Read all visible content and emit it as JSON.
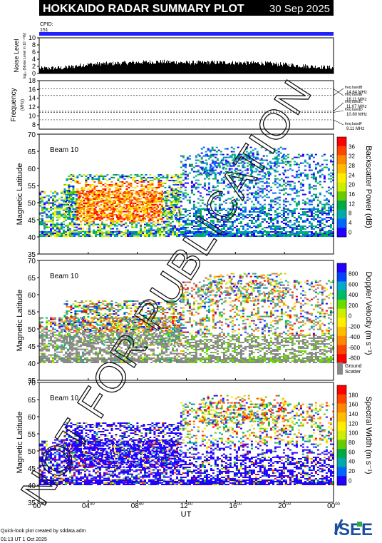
{
  "header": {
    "title": "HOKKAIDO RADAR SUMMARY PLOT",
    "date": "30 Sep 2025"
  },
  "cpid": {
    "label": "CPID:",
    "value": "151"
  },
  "noise_panel": {
    "ylabel": "Noise Level",
    "ylabel_sub": "log₁₀ (Noise Level in 10⁻¹⁰W)",
    "yticks": [
      "0",
      "2",
      "4",
      "6",
      "8",
      "10"
    ]
  },
  "freq_panel": {
    "ylabel": "Frequency",
    "ylabel_unit": "(MHz)",
    "yticks": [
      "8",
      "10",
      "12",
      "14",
      "16",
      "18"
    ],
    "bands": [
      {
        "name": "freq bandE",
        "value": "16.11 MHz"
      },
      {
        "name": "freq bandB",
        "value": "14.64 MHz"
      },
      {
        "name": "freq bandC",
        "value": "11.07 MHz"
      },
      {
        "name": "freq bandD",
        "value": "10.80 MHz"
      },
      {
        "name": "freq bandF",
        "value": "9.11 MHz"
      }
    ]
  },
  "panels": [
    {
      "beam_label": "Beam 10",
      "ylabel": "Magnetic Latitude",
      "colorbar_label": "Backscatter Power (dB)",
      "colorbar_ticks": [
        "36",
        "32",
        "28",
        "24",
        "20",
        "16",
        "12",
        "8",
        "4",
        "0"
      ],
      "colors": [
        "#ff0000",
        "#ff4400",
        "#ff8800",
        "#ffbb00",
        "#ffee00",
        "#ccee00",
        "#66cc00",
        "#00aa44",
        "#00aaaa",
        "#0066ff",
        "#2200ff"
      ]
    },
    {
      "beam_label": "Beam 10",
      "ylabel": "Magnetic Latitude",
      "colorbar_label": "Doppler Velocity (m s⁻¹)",
      "colorbar_ticks": [
        "800",
        "600",
        "400",
        "200",
        "0",
        "-200",
        "-400",
        "-600",
        "-800"
      ],
      "colors": [
        "#2200ff",
        "#0044ff",
        "#00aacc",
        "#00bb66",
        "#66dd00",
        "#ccee00",
        "#ffee00",
        "#ffbb00",
        "#ff8800",
        "#ff4400",
        "#ff0000"
      ],
      "ground_scatter_label": "Ground\nScatter",
      "ground_scatter_line1": "Ground",
      "ground_scatter_line2": "Scatter",
      "ground_scatter_color": "#888888"
    },
    {
      "beam_label": "Beam 10",
      "ylabel": "Magnetic Latitude",
      "colorbar_label": "Spectral Width (m s⁻¹)",
      "colorbar_ticks": [
        "180",
        "160",
        "140",
        "120",
        "100",
        "80",
        "60",
        "40",
        "20",
        "0"
      ],
      "colors": [
        "#ff0000",
        "#ff4400",
        "#ff8800",
        "#ffbb00",
        "#ffee00",
        "#ccee00",
        "#66cc00",
        "#00aa44",
        "#00aaaa",
        "#0066ff",
        "#2200ff"
      ]
    }
  ],
  "lat_ticks": [
    "35",
    "40",
    "45",
    "50",
    "55",
    "60",
    "65",
    "70"
  ],
  "x_axis": {
    "ticks": [
      "00",
      "04",
      "08",
      "12",
      "16",
      "20",
      "00"
    ],
    "tick_suffix": "00",
    "label": "UT"
  },
  "watermark": "NOT FOR PUBLICATION",
  "footer": {
    "line1": "Quick-look plot created by sddata.adm",
    "line2": "01:13 UT  1 Oct 2025",
    "logo_text": "ISEE"
  },
  "chart_data": [
    {
      "type": "area",
      "title": "Noise Level",
      "x_unit": "UT hours",
      "ylim": [
        0,
        10
      ],
      "x": [
        0,
        2,
        4,
        6,
        8,
        10,
        12,
        14,
        16,
        18,
        20,
        22,
        24
      ],
      "values": [
        1.4,
        1.6,
        2.6,
        2.8,
        3.1,
        3.3,
        3.0,
        3.1,
        3.0,
        2.9,
        2.5,
        2.0,
        1.6
      ]
    },
    {
      "type": "line",
      "title": "Frequency (MHz)",
      "ylim": [
        7,
        18
      ],
      "series": [
        {
          "name": "freq bandE",
          "value": 16.11
        },
        {
          "name": "freq bandB",
          "value": 14.64
        },
        {
          "name": "freq bandC",
          "value": 11.07
        },
        {
          "name": "freq bandD",
          "value": 10.8
        },
        {
          "name": "freq bandF",
          "value": 9.11
        }
      ]
    },
    {
      "type": "heatmap",
      "title": "Backscatter Power (dB)",
      "xlim": [
        0,
        24
      ],
      "ylim": [
        35,
        70
      ],
      "clim": [
        0,
        40
      ]
    },
    {
      "type": "heatmap",
      "title": "Doppler Velocity (m s⁻¹)",
      "xlim": [
        0,
        24
      ],
      "ylim": [
        35,
        70
      ],
      "clim": [
        -900,
        900
      ]
    },
    {
      "type": "heatmap",
      "title": "Spectral Width (m s⁻¹)",
      "xlim": [
        0,
        24
      ],
      "ylim": [
        35,
        70
      ],
      "clim": [
        0,
        200
      ]
    }
  ]
}
